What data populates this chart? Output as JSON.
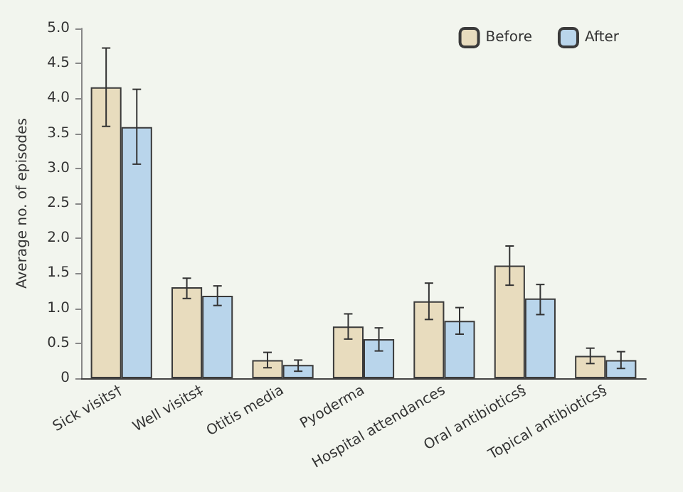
{
  "chart_data": {
    "type": "bar",
    "ylabel": "Average no. of episodes",
    "categories": [
      "Sick visits†",
      "Well visits‡",
      "Otitis media",
      "Pyoderma",
      "Hospital attendances",
      "Oral antibiotics§",
      "Topical antibiotics§"
    ],
    "series": [
      {
        "name": "Before",
        "color": "#e8dcbe",
        "values": [
          4.16,
          1.3,
          0.26,
          0.74,
          1.1,
          1.61,
          0.32
        ],
        "errors": [
          [
            3.6,
            4.72
          ],
          [
            1.14,
            1.43
          ],
          [
            0.15,
            0.37
          ],
          [
            0.56,
            0.92
          ],
          [
            0.84,
            1.36
          ],
          [
            1.33,
            1.89
          ],
          [
            0.21,
            0.43
          ]
        ]
      },
      {
        "name": "After",
        "color": "#b9d5eb",
        "values": [
          3.59,
          1.18,
          0.19,
          0.56,
          0.82,
          1.14,
          0.26
        ],
        "errors": [
          [
            3.06,
            4.13
          ],
          [
            1.04,
            1.32
          ],
          [
            0.1,
            0.26
          ],
          [
            0.39,
            0.72
          ],
          [
            0.63,
            1.01
          ],
          [
            0.91,
            1.34
          ],
          [
            0.14,
            0.38
          ]
        ]
      }
    ],
    "ylim": [
      0,
      5
    ],
    "yticks": [
      0,
      {
        "value": 0.5,
        "label": "0.5"
      },
      {
        "value": 1,
        "label": "1.0"
      },
      {
        "value": 1.5,
        "label": "1.5"
      },
      {
        "value": 2,
        "label": "2.0"
      },
      {
        "value": 2.5,
        "label": "2.5"
      },
      {
        "value": 3,
        "label": "3.0"
      },
      {
        "value": 3.5,
        "label": "3.5"
      },
      {
        "value": 4,
        "label": "4.0"
      },
      {
        "value": 4.5,
        "label": "4.5"
      },
      {
        "value": 5,
        "label": "5.0"
      }
    ],
    "grid": false,
    "legend": "top right"
  }
}
